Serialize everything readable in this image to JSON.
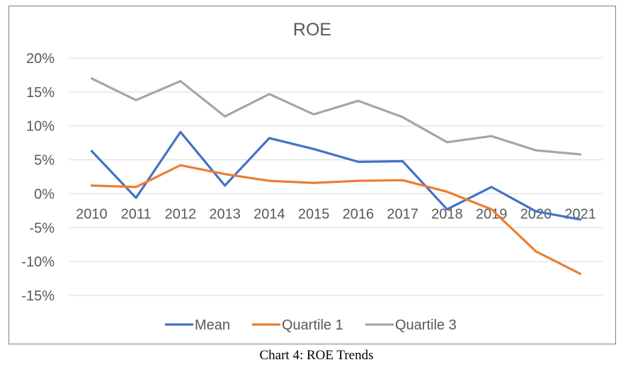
{
  "caption": "Chart 4: ROE Trends",
  "chart_data": {
    "type": "line",
    "title": "ROE",
    "categories": [
      "2010",
      "2011",
      "2012",
      "2013",
      "2014",
      "2015",
      "2016",
      "2017",
      "2018",
      "2019",
      "2020",
      "2021"
    ],
    "y_ticks": [
      "20%",
      "15%",
      "10%",
      "5%",
      "0%",
      "-5%",
      "-10%",
      "-15%"
    ],
    "ylim": [
      -15,
      20
    ],
    "y_unit": "%",
    "grid": true,
    "legend_position": "bottom",
    "series": [
      {
        "name": "Mean",
        "color": "#4472C4",
        "values": [
          6.3,
          -0.6,
          9.1,
          1.2,
          8.2,
          6.6,
          4.7,
          4.8,
          -2.3,
          1.0,
          -2.6,
          -3.8
        ]
      },
      {
        "name": "Quartile 1",
        "color": "#ED7D31",
        "values": [
          1.2,
          1.0,
          4.2,
          2.9,
          1.9,
          1.6,
          1.9,
          2.0,
          0.3,
          -2.3,
          -8.5,
          -11.8
        ]
      },
      {
        "name": "Quartile 3",
        "color": "#A5A5A5",
        "values": [
          17.0,
          13.8,
          16.6,
          11.4,
          14.7,
          11.7,
          13.7,
          11.3,
          7.6,
          8.5,
          6.4,
          5.8
        ]
      }
    ]
  }
}
